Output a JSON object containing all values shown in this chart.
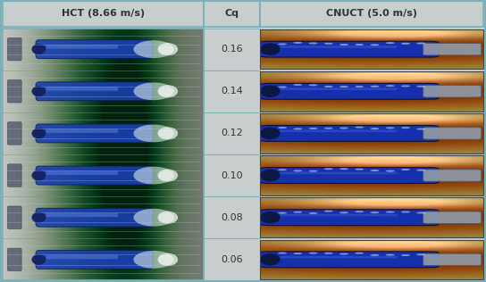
{
  "title_left": "HCT (8.66 m/s)",
  "title_center": "Cq",
  "title_right": "CNUCT (5.0 m/s)",
  "cq_values": [
    "0.16",
    "0.14",
    "0.12",
    "0.10",
    "0.08",
    "0.06"
  ],
  "bg_color": "#c8cece",
  "header_bg": "#c8c8c8",
  "border_color": "#7ab0b8",
  "fig_width": 5.44,
  "fig_height": 3.16,
  "dpi": 100
}
